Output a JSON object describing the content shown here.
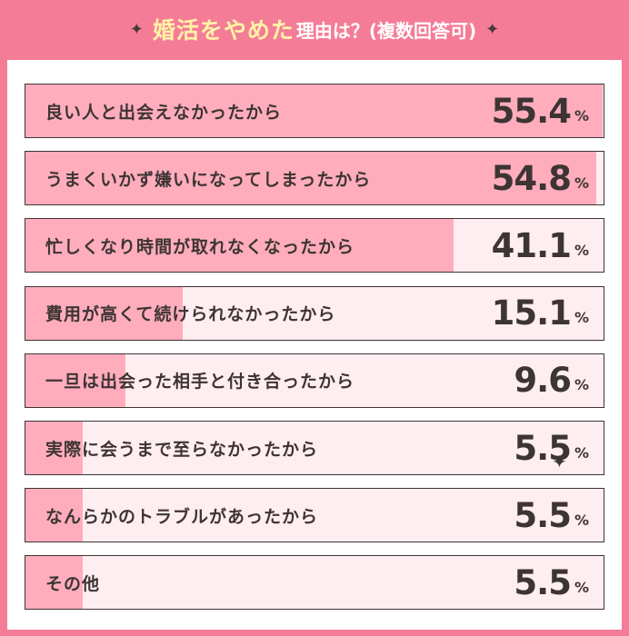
{
  "header": {
    "title": "婚活をやめた",
    "subtitle": "理由は？(複数回答可)",
    "star_left": "✦",
    "star_right": "✦"
  },
  "colors": {
    "background": "#f57c97",
    "bar_fill": "#ffadbd",
    "bar_track": "#ffeef1",
    "text": "#3d3434",
    "title": "#fff3a6"
  },
  "chart_data": {
    "type": "bar",
    "orientation": "horizontal",
    "title": "婚活をやめた理由は？(複数回答可)",
    "unit": "%",
    "xlim": [
      0,
      55.4
    ],
    "categories": [
      "良い人と出会えなかったから",
      "うまくいかず嫌いになってしまったから",
      "忙しくなり時間が取れなくなったから",
      "費用が高くて続けられなかったから",
      "一旦は出会った相手と付き合ったから",
      "実際に会うまで至らなかったから",
      "なんらかのトラブルがあったから",
      "その他"
    ],
    "values": [
      55.4,
      54.8,
      41.1,
      15.1,
      9.6,
      5.5,
      5.5,
      5.5
    ],
    "value_labels": [
      "55.4",
      "54.8",
      "41.1",
      "15.1",
      "9.6",
      "5.5",
      "5.5",
      "5.5"
    ]
  }
}
